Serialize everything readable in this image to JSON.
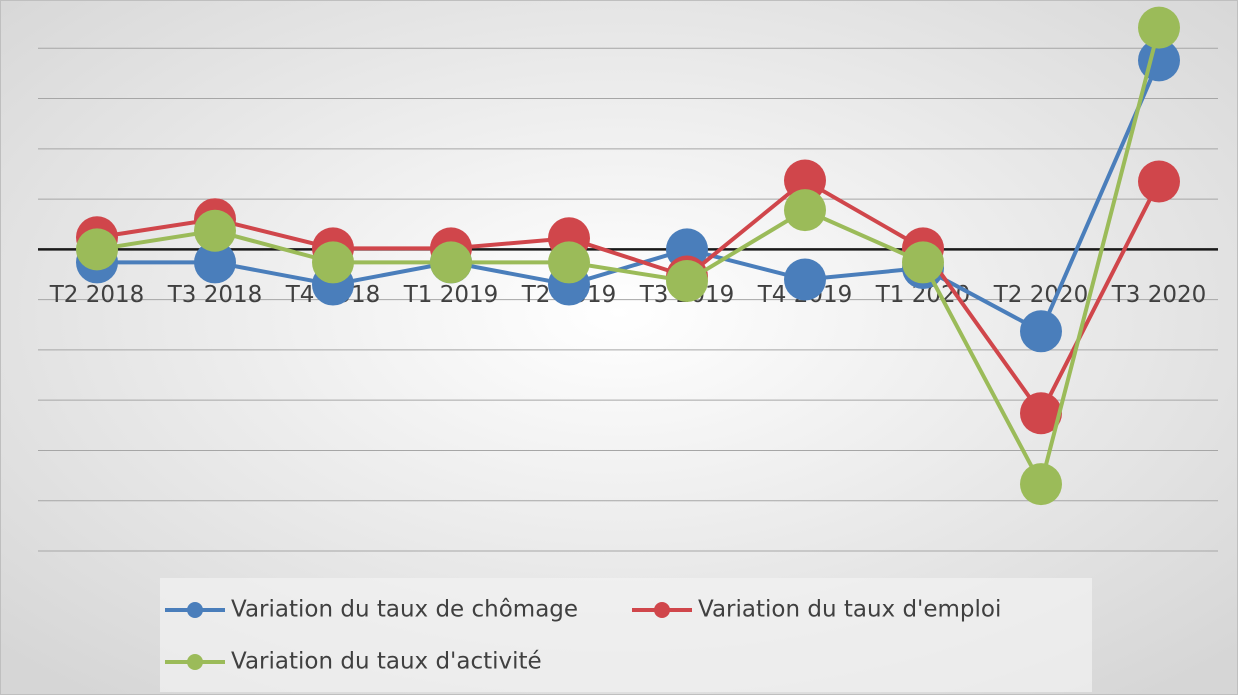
{
  "chart_data": {
    "type": "line",
    "categories": [
      "T2 2018",
      "T3 2018",
      "T4 2018",
      "T1 2019",
      "T2 2019",
      "T3 2019",
      "T4 2019",
      "T1 2020",
      "T2 2020",
      "T3 2020"
    ],
    "series": [
      {
        "name": "Variation du taux de chômage",
        "color": "#4a7ebb",
        "values": [
          -0.26,
          -0.26,
          -0.7,
          -0.26,
          -0.7,
          0,
          -0.6,
          -0.37,
          -1.63,
          3.76
        ]
      },
      {
        "name": "Variation du taux d'emploi",
        "color": "#d0464b",
        "values": [
          0.24,
          0.6,
          0.02,
          0.02,
          0.22,
          -0.54,
          1.37,
          0.02,
          -3.26,
          1.35
        ]
      },
      {
        "name": "Variation du taux d'activité",
        "color": "#9bbb59",
        "values": [
          0,
          0.37,
          -0.26,
          -0.26,
          -0.26,
          -0.63,
          0.78,
          -0.26,
          -4.67,
          4.41
        ]
      }
    ],
    "ylim": [
      -6,
      5
    ],
    "yticks": [
      -6,
      -5,
      -4,
      -3,
      -2,
      -1,
      0,
      1,
      2,
      3,
      4,
      5
    ],
    "grid": true,
    "legend": "bottom"
  }
}
